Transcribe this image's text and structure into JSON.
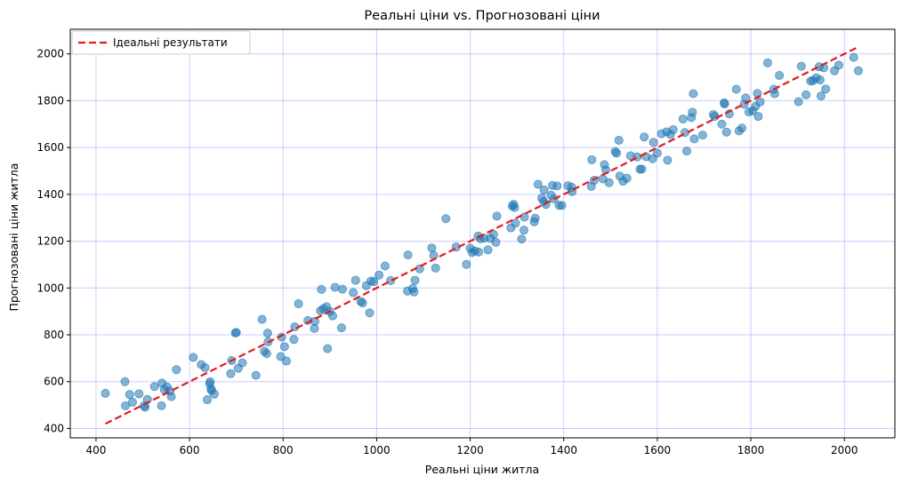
{
  "chart_data": {
    "type": "scatter",
    "title": "Реальні ціни vs. Прогнозовані ціни",
    "xlabel": "Реальні ціни житла",
    "ylabel": "Прогнозовані ціни житла",
    "xlim": [
      345,
      2108
    ],
    "ylim": [
      360,
      2105
    ],
    "xticks": [
      400,
      600,
      800,
      1000,
      1200,
      1400,
      1600,
      1800,
      2000
    ],
    "yticks": [
      400,
      600,
      800,
      1000,
      1200,
      1400,
      1600,
      1800,
      2000
    ],
    "grid": true,
    "grid_color": "#0000ff",
    "point_color": "#1f77b4",
    "line_color": "#e41a1c",
    "legend": {
      "position": "top-left",
      "entries": [
        "Ідеальні результати"
      ]
    },
    "ideal_line": {
      "name": "Ідеальні результати",
      "x": [
        420,
        2030
      ],
      "y": [
        420,
        2030
      ]
    },
    "series": [
      {
        "points": [
          [
            420,
            550
          ],
          [
            462,
            600
          ],
          [
            463,
            497
          ],
          [
            472,
            545
          ],
          [
            478,
            512
          ],
          [
            492,
            548
          ],
          [
            503,
            497
          ],
          [
            505,
            491
          ],
          [
            510,
            524
          ],
          [
            525,
            579
          ],
          [
            540,
            497
          ],
          [
            541,
            594
          ],
          [
            546,
            566
          ],
          [
            552,
            577
          ],
          [
            558,
            560
          ],
          [
            561,
            536
          ],
          [
            572,
            651
          ],
          [
            608,
            704
          ],
          [
            625,
            673
          ],
          [
            633,
            660
          ],
          [
            638,
            523
          ],
          [
            643,
            591
          ],
          [
            644,
            600
          ],
          [
            646,
            569
          ],
          [
            647,
            562
          ],
          [
            653,
            547
          ],
          [
            688,
            634
          ],
          [
            690,
            690
          ],
          [
            698,
            808
          ],
          [
            700,
            810
          ],
          [
            704,
            657
          ],
          [
            713,
            680
          ],
          [
            742,
            627
          ],
          [
            755,
            866
          ],
          [
            760,
            730
          ],
          [
            765,
            720
          ],
          [
            767,
            807
          ],
          [
            768,
            770
          ],
          [
            795,
            707
          ],
          [
            797,
            790
          ],
          [
            803,
            750
          ],
          [
            807,
            688
          ],
          [
            823,
            780
          ],
          [
            825,
            834
          ],
          [
            833,
            933
          ],
          [
            853,
            861
          ],
          [
            867,
            827
          ],
          [
            868,
            858
          ],
          [
            880,
            903
          ],
          [
            882,
            994
          ],
          [
            886,
            912
          ],
          [
            893,
            920
          ],
          [
            895,
            741
          ],
          [
            900,
            900
          ],
          [
            906,
            881
          ],
          [
            911,
            1003
          ],
          [
            925,
            830
          ],
          [
            927,
            995
          ],
          [
            950,
            980
          ],
          [
            955,
            1033
          ],
          [
            966,
            943
          ],
          [
            970,
            936
          ],
          [
            978,
            1010
          ],
          [
            985,
            894
          ],
          [
            988,
            1030
          ],
          [
            994,
            1027
          ],
          [
            1005,
            1055
          ],
          [
            1018,
            1094
          ],
          [
            1030,
            1032
          ],
          [
            1066,
            987
          ],
          [
            1067,
            1141
          ],
          [
            1077,
            998
          ],
          [
            1080,
            983
          ],
          [
            1082,
            1033
          ],
          [
            1092,
            1082
          ],
          [
            1118,
            1171
          ],
          [
            1122,
            1139
          ],
          [
            1126,
            1085
          ],
          [
            1148,
            1296
          ],
          [
            1170,
            1175
          ],
          [
            1192,
            1101
          ],
          [
            1200,
            1170
          ],
          [
            1204,
            1152
          ],
          [
            1210,
            1158
          ],
          [
            1217,
            1222
          ],
          [
            1218,
            1154
          ],
          [
            1222,
            1210
          ],
          [
            1230,
            1213
          ],
          [
            1238,
            1163
          ],
          [
            1243,
            1212
          ],
          [
            1250,
            1229
          ],
          [
            1255,
            1195
          ],
          [
            1257,
            1307
          ],
          [
            1287,
            1257
          ],
          [
            1290,
            1350
          ],
          [
            1293,
            1357
          ],
          [
            1295,
            1344
          ],
          [
            1297,
            1277
          ],
          [
            1310,
            1209
          ],
          [
            1315,
            1247
          ],
          [
            1316,
            1303
          ],
          [
            1337,
            1283
          ],
          [
            1339,
            1298
          ],
          [
            1345,
            1443
          ],
          [
            1353,
            1384
          ],
          [
            1357,
            1370
          ],
          [
            1358,
            1419
          ],
          [
            1362,
            1357
          ],
          [
            1373,
            1396
          ],
          [
            1376,
            1438
          ],
          [
            1379,
            1381
          ],
          [
            1386,
            1436
          ],
          [
            1390,
            1353
          ],
          [
            1396,
            1353
          ],
          [
            1409,
            1437
          ],
          [
            1417,
            1430
          ],
          [
            1418,
            1412
          ],
          [
            1459,
            1434
          ],
          [
            1460,
            1548
          ],
          [
            1465,
            1460
          ],
          [
            1484,
            1466
          ],
          [
            1487,
            1527
          ],
          [
            1490,
            1504
          ],
          [
            1497,
            1450
          ],
          [
            1510,
            1583
          ],
          [
            1513,
            1576
          ],
          [
            1518,
            1631
          ],
          [
            1520,
            1478
          ],
          [
            1527,
            1456
          ],
          [
            1535,
            1469
          ],
          [
            1543,
            1565
          ],
          [
            1557,
            1560
          ],
          [
            1563,
            1507
          ],
          [
            1567,
            1508
          ],
          [
            1572,
            1645
          ],
          [
            1576,
            1561
          ],
          [
            1590,
            1552
          ],
          [
            1592,
            1622
          ],
          [
            1600,
            1576
          ],
          [
            1609,
            1659
          ],
          [
            1620,
            1667
          ],
          [
            1622,
            1546
          ],
          [
            1628,
            1656
          ],
          [
            1634,
            1676
          ],
          [
            1655,
            1722
          ],
          [
            1659,
            1664
          ],
          [
            1663,
            1585
          ],
          [
            1673,
            1728
          ],
          [
            1675,
            1751
          ],
          [
            1677,
            1830
          ],
          [
            1679,
            1637
          ],
          [
            1697,
            1653
          ],
          [
            1720,
            1741
          ],
          [
            1723,
            1733
          ],
          [
            1738,
            1700
          ],
          [
            1743,
            1791
          ],
          [
            1744,
            1786
          ],
          [
            1748,
            1666
          ],
          [
            1754,
            1744
          ],
          [
            1769,
            1849
          ],
          [
            1775,
            1671
          ],
          [
            1781,
            1683
          ],
          [
            1786,
            1785
          ],
          [
            1789,
            1812
          ],
          [
            1796,
            1752
          ],
          [
            1804,
            1757
          ],
          [
            1810,
            1776
          ],
          [
            1814,
            1831
          ],
          [
            1816,
            1733
          ],
          [
            1820,
            1795
          ],
          [
            1836,
            1962
          ],
          [
            1849,
            1849
          ],
          [
            1851,
            1830
          ],
          [
            1861,
            1908
          ],
          [
            1902,
            1796
          ],
          [
            1908,
            1947
          ],
          [
            1918,
            1825
          ],
          [
            1928,
            1884
          ],
          [
            1933,
            1886
          ],
          [
            1940,
            1898
          ],
          [
            1946,
            1945
          ],
          [
            1948,
            1889
          ],
          [
            1950,
            1820
          ],
          [
            1956,
            1941
          ],
          [
            1960,
            1850
          ],
          [
            1979,
            1928
          ],
          [
            1988,
            1952
          ],
          [
            2020,
            1985
          ],
          [
            2030,
            1928
          ]
        ]
      }
    ]
  }
}
